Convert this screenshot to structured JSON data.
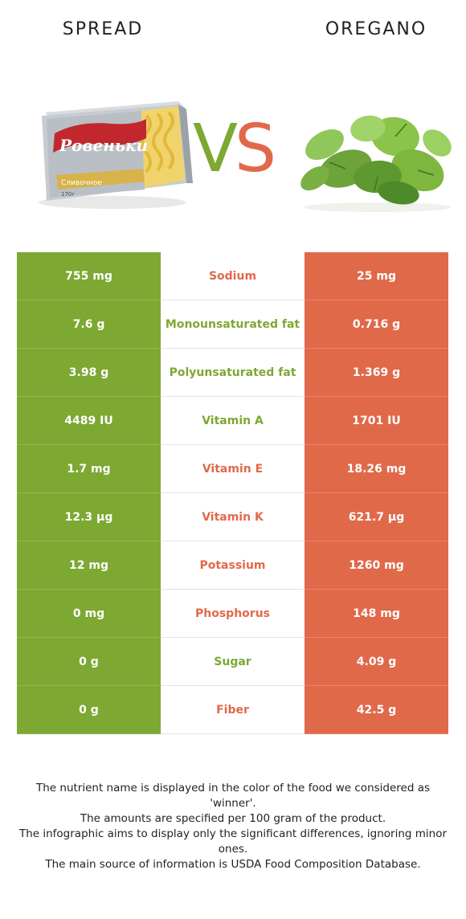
{
  "header": {
    "left_title": "SPREAD",
    "right_title": "OREGANO",
    "vs_v": "V",
    "vs_s": "S"
  },
  "packaging_text": {
    "brand": "Ровеньки",
    "product": "Сливочное",
    "weight": "170г"
  },
  "colors": {
    "winner_left": "#7da832",
    "winner_right": "#e0694a"
  },
  "rows": [
    {
      "left": "755 mg",
      "nutrient": "Sodium",
      "right": "25 mg",
      "winner": "right"
    },
    {
      "left": "7.6 g",
      "nutrient": "Monounsaturated fat",
      "right": "0.716 g",
      "winner": "left"
    },
    {
      "left": "3.98 g",
      "nutrient": "Polyunsaturated fat",
      "right": "1.369 g",
      "winner": "left"
    },
    {
      "left": "4489 IU",
      "nutrient": "Vitamin A",
      "right": "1701 IU",
      "winner": "left"
    },
    {
      "left": "1.7 mg",
      "nutrient": "Vitamin E",
      "right": "18.26 mg",
      "winner": "right"
    },
    {
      "left": "12.3 µg",
      "nutrient": "Vitamin K",
      "right": "621.7 µg",
      "winner": "right"
    },
    {
      "left": "12 mg",
      "nutrient": "Potassium",
      "right": "1260 mg",
      "winner": "right"
    },
    {
      "left": "0 mg",
      "nutrient": "Phosphorus",
      "right": "148 mg",
      "winner": "right"
    },
    {
      "left": "0 g",
      "nutrient": "Sugar",
      "right": "4.09 g",
      "winner": "left"
    },
    {
      "left": "0 g",
      "nutrient": "Fiber",
      "right": "42.5 g",
      "winner": "right"
    }
  ],
  "notes": [
    "The nutrient name is displayed in the color of the food we considered as 'winner'.",
    "The amounts are specified per 100 gram of the product.",
    "The infographic aims to display only the significant differences, ignoring minor ones.",
    "The main source of information is USDA Food Composition Database."
  ]
}
